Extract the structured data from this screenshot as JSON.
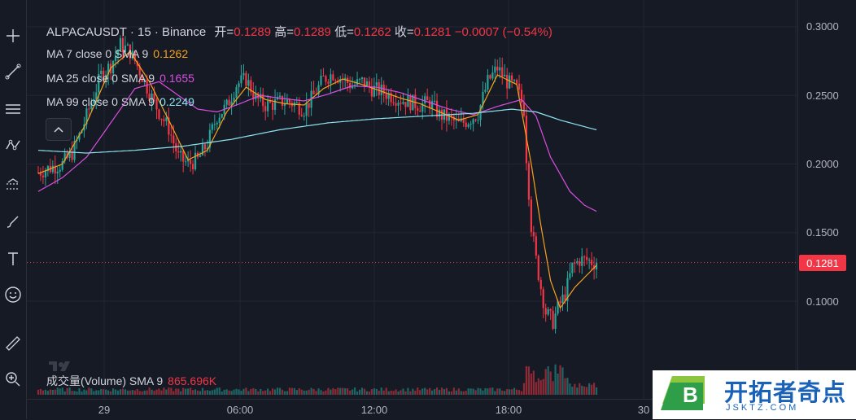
{
  "header": {
    "symbol": "ALPACAUSDT",
    "interval": "15",
    "exchange": "Binance",
    "sep": "·",
    "ohlc": [
      {
        "key": "开=",
        "value": "0.1289"
      },
      {
        "key": "高=",
        "value": "0.1289"
      },
      {
        "key": "低=",
        "value": "0.1262"
      },
      {
        "key": "收=",
        "value": "0.1281"
      }
    ],
    "change": "−0.0007 (−0.54%)"
  },
  "indicators": [
    {
      "label": "MA 7 close 0 SMA 9",
      "value": "0.1262",
      "color": "#f7a21b"
    },
    {
      "label": "MA 25 close 0 SMA 9",
      "value": "0.1655",
      "color": "#d84fe0"
    },
    {
      "label": "MA 99 close 0 SMA 9",
      "value": "0.2249",
      "color": "#8fe3f0"
    }
  ],
  "volume_legend": {
    "label": "成交量(Volume) SMA 9",
    "value": "865.696K"
  },
  "price_axis": {
    "ticks": [
      "0.3000",
      "0.2500",
      "0.2000",
      "0.1500",
      "0.1000"
    ],
    "last_price": "0.1281"
  },
  "time_axis": {
    "ticks": [
      "29",
      "06:00",
      "12:00",
      "18:00",
      "30"
    ]
  },
  "colors": {
    "up": "#26a69a",
    "down": "#f23645",
    "background": "#161a25",
    "grid": "#232632"
  },
  "toolbar_icons": [
    "crosshair-icon",
    "trend-line-icon",
    "fib-retracement-icon",
    "pattern-icon",
    "forecast-icon",
    "brush-icon",
    "text-icon",
    "emoji-icon",
    "ruler-icon",
    "zoom-in-icon"
  ],
  "watermark": {
    "title": "开拓者奇点",
    "url": "JSKTZ.COM",
    "logo_letter": "B"
  },
  "chart_data": {
    "type": "candlestick",
    "symbol": "ALPACAUSDT",
    "interval": "15m",
    "ylim": [
      0.06,
      0.31
    ],
    "y_ticks": [
      0.3,
      0.25,
      0.2,
      0.15,
      0.1
    ],
    "x_ticks": [
      "29",
      "06:00",
      "12:00",
      "18:00",
      "30"
    ],
    "last_price": 0.1281,
    "ma7_last": 0.1262,
    "ma25_last": 0.1655,
    "ma99_last": 0.2249,
    "volume_sma9": "865.696K",
    "close_anchors": [
      [
        0,
        0.194
      ],
      [
        6,
        0.198
      ],
      [
        10,
        0.2
      ],
      [
        14,
        0.208
      ],
      [
        18,
        0.225
      ],
      [
        22,
        0.245
      ],
      [
        26,
        0.265
      ],
      [
        30,
        0.272
      ],
      [
        34,
        0.287
      ],
      [
        38,
        0.282
      ],
      [
        42,
        0.268
      ],
      [
        46,
        0.252
      ],
      [
        50,
        0.238
      ],
      [
        54,
        0.226
      ],
      [
        58,
        0.205
      ],
      [
        62,
        0.2
      ],
      [
        66,
        0.203
      ],
      [
        70,
        0.215
      ],
      [
        74,
        0.235
      ],
      [
        78,
        0.242
      ],
      [
        82,
        0.258
      ],
      [
        86,
        0.262
      ],
      [
        90,
        0.248
      ],
      [
        94,
        0.243
      ],
      [
        98,
        0.244
      ],
      [
        102,
        0.246
      ],
      [
        106,
        0.244
      ],
      [
        110,
        0.24
      ],
      [
        114,
        0.25
      ],
      [
        118,
        0.262
      ],
      [
        122,
        0.266
      ],
      [
        126,
        0.262
      ],
      [
        130,
        0.257
      ],
      [
        134,
        0.26
      ],
      [
        138,
        0.255
      ],
      [
        142,
        0.253
      ],
      [
        146,
        0.25
      ],
      [
        150,
        0.247
      ],
      [
        154,
        0.245
      ],
      [
        158,
        0.243
      ],
      [
        162,
        0.245
      ],
      [
        166,
        0.236
      ],
      [
        170,
        0.233
      ],
      [
        174,
        0.229
      ],
      [
        178,
        0.232
      ],
      [
        182,
        0.237
      ],
      [
        186,
        0.26
      ],
      [
        190,
        0.27
      ],
      [
        194,
        0.26
      ],
      [
        198,
        0.255
      ],
      [
        201,
        0.24
      ],
      [
        202,
        0.205
      ],
      [
        204,
        0.155
      ],
      [
        206,
        0.13
      ],
      [
        208,
        0.11
      ],
      [
        210,
        0.092
      ],
      [
        213,
        0.085
      ],
      [
        215,
        0.095
      ],
      [
        218,
        0.105
      ],
      [
        221,
        0.125
      ],
      [
        224,
        0.13
      ],
      [
        227,
        0.13
      ],
      [
        230,
        0.128
      ],
      [
        231,
        0.1281
      ]
    ],
    "ma7_anchors": [
      [
        0,
        0.193
      ],
      [
        10,
        0.2
      ],
      [
        20,
        0.23
      ],
      [
        30,
        0.27
      ],
      [
        38,
        0.282
      ],
      [
        46,
        0.26
      ],
      [
        54,
        0.232
      ],
      [
        62,
        0.203
      ],
      [
        70,
        0.21
      ],
      [
        78,
        0.238
      ],
      [
        86,
        0.256
      ],
      [
        94,
        0.247
      ],
      [
        102,
        0.244
      ],
      [
        110,
        0.243
      ],
      [
        118,
        0.255
      ],
      [
        126,
        0.262
      ],
      [
        134,
        0.258
      ],
      [
        142,
        0.253
      ],
      [
        150,
        0.248
      ],
      [
        158,
        0.244
      ],
      [
        166,
        0.238
      ],
      [
        174,
        0.232
      ],
      [
        182,
        0.236
      ],
      [
        190,
        0.265
      ],
      [
        198,
        0.258
      ],
      [
        204,
        0.2
      ],
      [
        208,
        0.155
      ],
      [
        212,
        0.115
      ],
      [
        216,
        0.095
      ],
      [
        222,
        0.11
      ],
      [
        231,
        0.1262
      ]
    ],
    "ma25_anchors": [
      [
        0,
        0.18
      ],
      [
        10,
        0.19
      ],
      [
        20,
        0.205
      ],
      [
        30,
        0.23
      ],
      [
        40,
        0.255
      ],
      [
        50,
        0.26
      ],
      [
        58,
        0.25
      ],
      [
        66,
        0.24
      ],
      [
        74,
        0.238
      ],
      [
        82,
        0.243
      ],
      [
        92,
        0.25
      ],
      [
        100,
        0.248
      ],
      [
        110,
        0.246
      ],
      [
        120,
        0.251
      ],
      [
        130,
        0.257
      ],
      [
        140,
        0.256
      ],
      [
        150,
        0.252
      ],
      [
        160,
        0.246
      ],
      [
        170,
        0.24
      ],
      [
        180,
        0.236
      ],
      [
        190,
        0.242
      ],
      [
        200,
        0.247
      ],
      [
        206,
        0.235
      ],
      [
        212,
        0.205
      ],
      [
        220,
        0.18
      ],
      [
        226,
        0.17
      ],
      [
        231,
        0.1655
      ]
    ],
    "ma99_anchors": [
      [
        0,
        0.21
      ],
      [
        20,
        0.208
      ],
      [
        40,
        0.21
      ],
      [
        60,
        0.213
      ],
      [
        80,
        0.218
      ],
      [
        100,
        0.225
      ],
      [
        120,
        0.23
      ],
      [
        140,
        0.233
      ],
      [
        160,
        0.235
      ],
      [
        180,
        0.237
      ],
      [
        196,
        0.24
      ],
      [
        206,
        0.238
      ],
      [
        216,
        0.232
      ],
      [
        231,
        0.2249
      ]
    ]
  }
}
